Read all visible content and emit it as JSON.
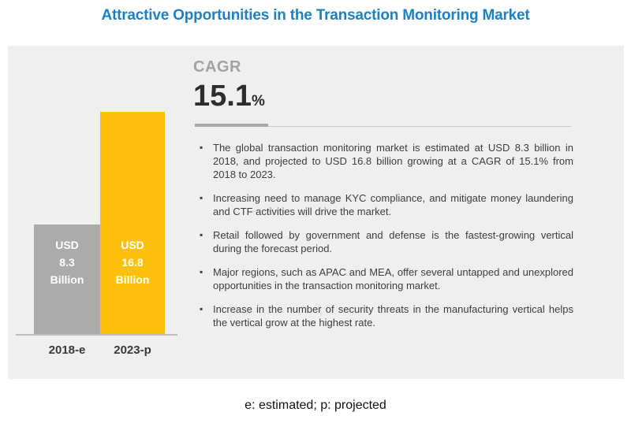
{
  "title": "Attractive Opportunities in the Transaction Monitoring Market",
  "colors": {
    "accent_blue": "#1d80c3",
    "panel_background": "#f0efef",
    "bar_gray": "#ababab",
    "bar_yellow": "#fdc10d"
  },
  "cagr": {
    "label": "CAGR",
    "value": "15.1",
    "unit": "%"
  },
  "chart_data": {
    "type": "bar",
    "categories": [
      "2018-e",
      "2023-p"
    ],
    "values": [
      8.3,
      16.8
    ],
    "unit": "USD Billion",
    "colors": [
      "#ababab",
      "#fdc10d"
    ],
    "title": "Attractive Opportunities in the Transaction Monitoring Market",
    "xlabel": "",
    "ylabel": "",
    "ylim": [
      0,
      16.8
    ],
    "grid": false,
    "legend": false,
    "bar_value_labels": [
      "USD 8.3 Billion",
      "USD 16.8 Billion"
    ]
  },
  "bars": [
    {
      "label_lines": [
        "USD",
        "8.3",
        "Billion"
      ],
      "category": "2018-e"
    },
    {
      "label_lines": [
        "USD",
        "16.8",
        "Billion"
      ],
      "category": "2023-p"
    }
  ],
  "bullets": [
    "The global transaction monitoring market is estimated at USD 8.3 billion in 2018, and projected to USD 16.8 billion growing at a CAGR of 15.1% from 2018 to 2023.",
    "Increasing need to manage KYC compliance, and mitigate money laundering and CTF activities will drive the market.",
    "Retail followed by government and defense is the fastest-growing vertical during the forecast period.",
    "Major regions, such as APAC and MEA, offer several untapped and unexplored opportunities in the transaction monitoring market.",
    "Increase in the number of security threats in the manufacturing vertical helps the vertical grow at the highest rate."
  ],
  "footer": "e: estimated; p: projected"
}
